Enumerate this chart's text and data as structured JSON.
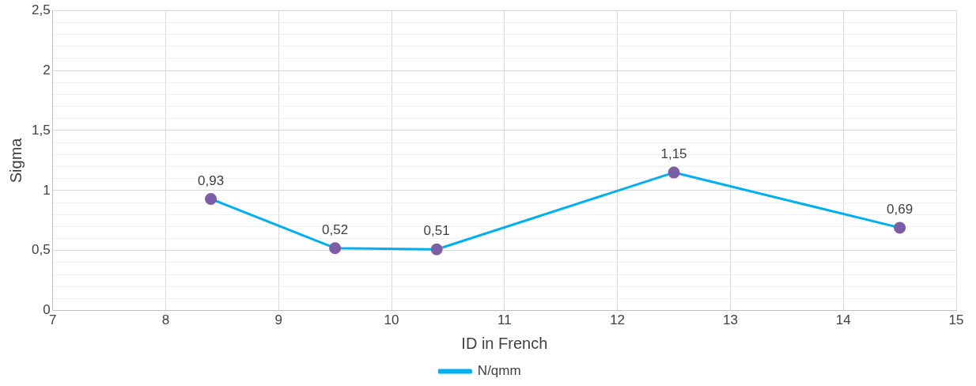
{
  "chart_data": {
    "type": "line",
    "xlabel": "ID in French",
    "ylabel": "Sigma",
    "x": [
      8.4,
      9.5,
      10.4,
      12.5,
      14.5
    ],
    "series": [
      {
        "name": "N/qmm",
        "color": "#00b0f0",
        "colors": [
          "#7b5ea7",
          "#7b5ea7",
          "#7b5ea7",
          "#7b5ea7",
          "#7b5ea7"
        ],
        "values": [
          0.93,
          0.52,
          0.51,
          1.15,
          0.69
        ],
        "value_labels": [
          "0,93",
          "0,52",
          "0,51",
          "1,15",
          "0,69"
        ]
      }
    ],
    "xlim": [
      7,
      15
    ],
    "xticks": [
      7,
      8,
      9,
      10,
      11,
      12,
      13,
      14,
      15
    ],
    "ylim": [
      0,
      2.5
    ],
    "yticks": [
      0,
      {
        "value": 0.1,
        "label": null
      },
      {
        "value": 0.2,
        "label": null
      },
      {
        "value": 0.3,
        "label": null
      },
      {
        "value": 0.4,
        "label": null
      },
      {
        "value": 0.5,
        "label": "0,5"
      },
      {
        "value": 0.6,
        "label": null
      },
      {
        "value": 0.7,
        "label": null
      },
      {
        "value": 0.8,
        "label": null
      },
      {
        "value": 0.9,
        "label": null
      },
      1,
      {
        "value": 1.1,
        "label": null
      },
      {
        "value": 1.2,
        "label": null
      },
      {
        "value": 1.3,
        "label": null
      },
      {
        "value": 1.4,
        "label": null
      },
      {
        "value": 1.5,
        "label": "1,5"
      },
      {
        "value": 1.6,
        "label": null
      },
      {
        "value": 1.7,
        "label": null
      },
      {
        "value": 1.8,
        "label": null
      },
      {
        "value": 1.9,
        "label": null
      },
      2,
      {
        "value": 2.1,
        "label": null
      },
      {
        "value": 2.2,
        "label": null
      },
      {
        "value": 2.3,
        "label": null
      },
      {
        "value": 2.4,
        "label": null
      },
      {
        "value": 2.5,
        "label": "2,5"
      }
    ],
    "grid": true,
    "legend": "bottom",
    "marker": "circle",
    "line_style": "solid"
  }
}
